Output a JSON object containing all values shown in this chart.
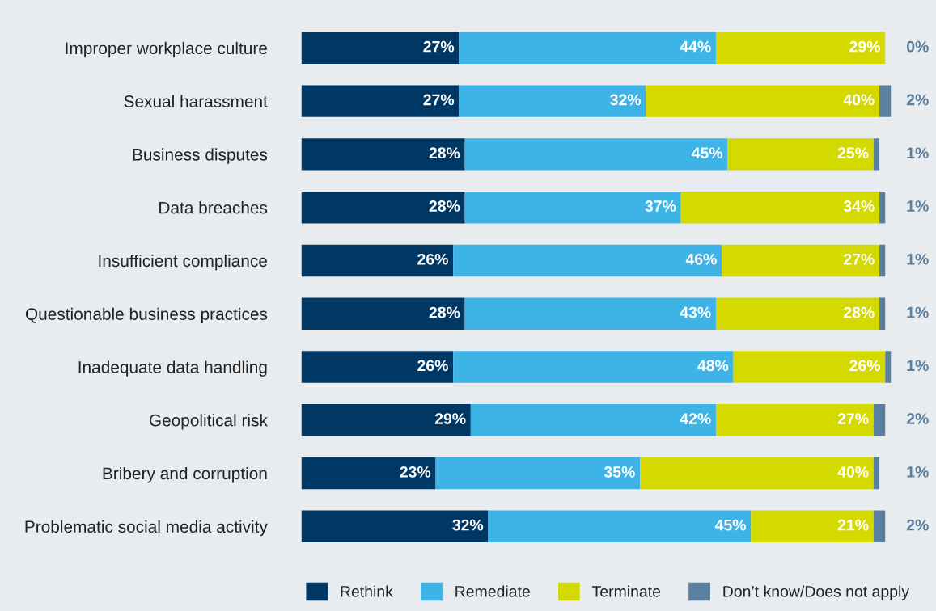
{
  "chart_data": {
    "type": "bar",
    "orientation": "horizontal",
    "stacked": true,
    "legend": "bottom",
    "grid": false,
    "tick_labels": "y",
    "categories": [
      "Improper workplace culture",
      "Sexual harassment",
      "Business disputes",
      "Data breaches",
      "Insufficient compliance",
      "Questionable business practices",
      "Inadequate data handling",
      "Geopolitical risk",
      "Bribery and corruption",
      "Problematic social media activity"
    ],
    "series": [
      {
        "name": "Rethink",
        "color": "#003865",
        "values": [
          27,
          27,
          28,
          28,
          26,
          28,
          26,
          29,
          23,
          32
        ],
        "value_labels": [
          "27%",
          "27%",
          "28%",
          "28%",
          "26%",
          "28%",
          "26%",
          "29%",
          "23%",
          "32%"
        ]
      },
      {
        "name": "Remediate",
        "color": "#3db4e5",
        "values": [
          44,
          32,
          45,
          37,
          46,
          43,
          48,
          42,
          35,
          45
        ],
        "value_labels": [
          "44%",
          "32%",
          "45%",
          "37%",
          "46%",
          "43%",
          "48%",
          "42%",
          "35%",
          "45%"
        ]
      },
      {
        "name": "Terminate",
        "color": "#d4d900",
        "values": [
          29,
          40,
          25,
          34,
          27,
          28,
          26,
          27,
          40,
          21
        ],
        "value_labels": [
          "29%",
          "40%",
          "25%",
          "34%",
          "27%",
          "28%",
          "26%",
          "27%",
          "40%",
          "21%"
        ]
      },
      {
        "name": "Don’t know/Does not apply",
        "color": "#5b7f9e",
        "values": [
          0,
          2,
          1,
          1,
          1,
          1,
          1,
          2,
          1,
          2
        ],
        "value_labels": [
          "0%",
          "2%",
          "1%",
          "1%",
          "1%",
          "1%",
          "1%",
          "2%",
          "1%",
          "2%"
        ]
      }
    ]
  }
}
